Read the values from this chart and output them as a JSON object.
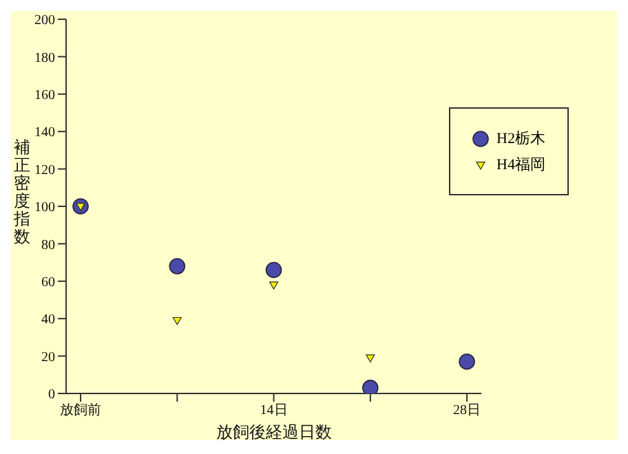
{
  "chart_data": {
    "type": "scatter",
    "xlabel": "放飼後経過日数",
    "ylabel": "補正密度指数",
    "categories": [
      "放飼前",
      null,
      "14日",
      null,
      "28日"
    ],
    "series": [
      {
        "name": "H2栃木",
        "color": "#4a4aa8",
        "marker": "circle",
        "values": [
          100,
          68,
          66,
          3,
          17
        ]
      },
      {
        "name": "H4福岡",
        "color": "#f0f000",
        "marker": "triangle-down",
        "values": [
          100,
          39,
          58,
          19,
          null
        ]
      }
    ],
    "ylim": [
      0,
      200
    ],
    "yticks": [
      0,
      20,
      40,
      60,
      80,
      100,
      120,
      140,
      160,
      180,
      200
    ],
    "grid": false,
    "legend": "top right"
  }
}
